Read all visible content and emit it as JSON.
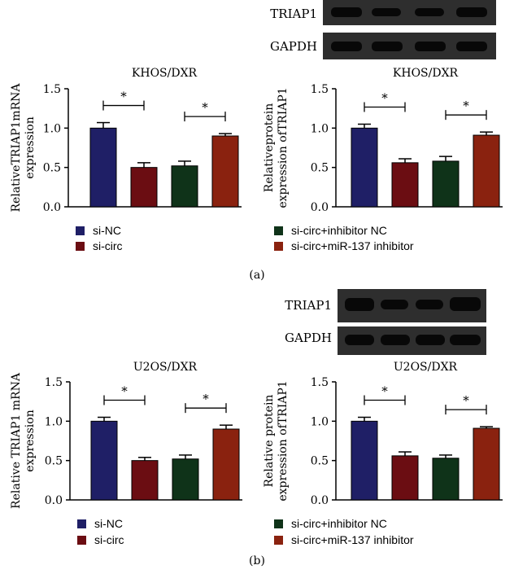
{
  "colors": {
    "si_nc": "#1f1f66",
    "si_circ": "#6b0d12",
    "inhibitor_nc": "#0f3319",
    "mir137_inhibitor": "#8a220f",
    "axis": "#000000",
    "blot_bg": "#2e2e2e",
    "band": "#080808"
  },
  "panel_labels": {
    "a": "(a)",
    "b": "(b)"
  },
  "panel_a": {
    "blot": {
      "label_top": "TRIAP1",
      "label_bottom": "GAPDH"
    },
    "legend": [
      "si-NC",
      "si-circ",
      "si-circ+inhibitor NC",
      "si-circ+miR-137 inhibitor"
    ]
  },
  "panel_b": {
    "blot": {
      "label_top": "TRIAP1",
      "label_bottom": "GAPDH"
    },
    "legend": [
      "si-NC",
      "si-circ",
      "si-circ+inhibitor NC",
      "si-circ+miR-137 inhibitor"
    ]
  },
  "chart_data": [
    {
      "id": "a_mrna",
      "type": "bar",
      "panel": "a",
      "title": "KHOS/DXR",
      "ylabel_lines": [
        "RelativeTRIAP1mRNA",
        "expression"
      ],
      "categories": [
        "si-NC",
        "si-circ",
        "si-circ+inhibitor NC",
        "si-circ+miR-137 inhibitor"
      ],
      "values": [
        1.0,
        0.5,
        0.52,
        0.9
      ],
      "errors": [
        0.07,
        0.06,
        0.06,
        0.03
      ],
      "ylim": [
        0,
        1.5
      ],
      "yticks": [
        "0.0",
        "0.5",
        "1.0",
        "1.5"
      ],
      "significance": [
        {
          "pair": [
            0,
            1
          ],
          "label": "*"
        },
        {
          "pair": [
            2,
            3
          ],
          "label": "*"
        }
      ]
    },
    {
      "id": "a_protein",
      "type": "bar",
      "panel": "a",
      "title": "KHOS/DXR",
      "ylabel_lines": [
        "Relativeprotein",
        "expression ofTRIAP1"
      ],
      "categories": [
        "si-NC",
        "si-circ",
        "si-circ+inhibitor NC",
        "si-circ+miR-137 inhibitor"
      ],
      "values": [
        1.0,
        0.56,
        0.58,
        0.91
      ],
      "errors": [
        0.05,
        0.05,
        0.06,
        0.04
      ],
      "ylim": [
        0,
        1.5
      ],
      "yticks": [
        "0.0",
        "0.5",
        "1.0",
        "1.5"
      ],
      "significance": [
        {
          "pair": [
            0,
            1
          ],
          "label": "*"
        },
        {
          "pair": [
            2,
            3
          ],
          "label": "*"
        }
      ]
    },
    {
      "id": "b_mrna",
      "type": "bar",
      "panel": "b",
      "title": "U2OS/DXR",
      "ylabel_lines": [
        "Relative TRIAP1 mRNA",
        "expression"
      ],
      "categories": [
        "si-NC",
        "si-circ",
        "si-circ+inhibitor NC",
        "si-circ+miR-137 inhibitor"
      ],
      "values": [
        1.0,
        0.5,
        0.52,
        0.9
      ],
      "errors": [
        0.05,
        0.04,
        0.05,
        0.05
      ],
      "ylim": [
        0,
        1.5
      ],
      "yticks": [
        "0.0",
        "0.5",
        "1.0",
        "1.5"
      ],
      "significance": [
        {
          "pair": [
            0,
            1
          ],
          "label": "*"
        },
        {
          "pair": [
            2,
            3
          ],
          "label": "*"
        }
      ]
    },
    {
      "id": "b_protein",
      "type": "bar",
      "panel": "b",
      "title": "U2OS/DXR",
      "ylabel_lines": [
        "Relative protein",
        "expression ofTRIAP1"
      ],
      "categories": [
        "si-NC",
        "si-circ",
        "si-circ+inhibitor NC",
        "si-circ+miR-137 inhibitor"
      ],
      "values": [
        1.0,
        0.56,
        0.53,
        0.91
      ],
      "errors": [
        0.05,
        0.05,
        0.04,
        0.02
      ],
      "ylim": [
        0,
        1.5
      ],
      "yticks": [
        "0.0",
        "0.5",
        "1.0",
        "1.5"
      ],
      "significance": [
        {
          "pair": [
            0,
            1
          ],
          "label": "*"
        },
        {
          "pair": [
            2,
            3
          ],
          "label": "*"
        }
      ]
    }
  ]
}
